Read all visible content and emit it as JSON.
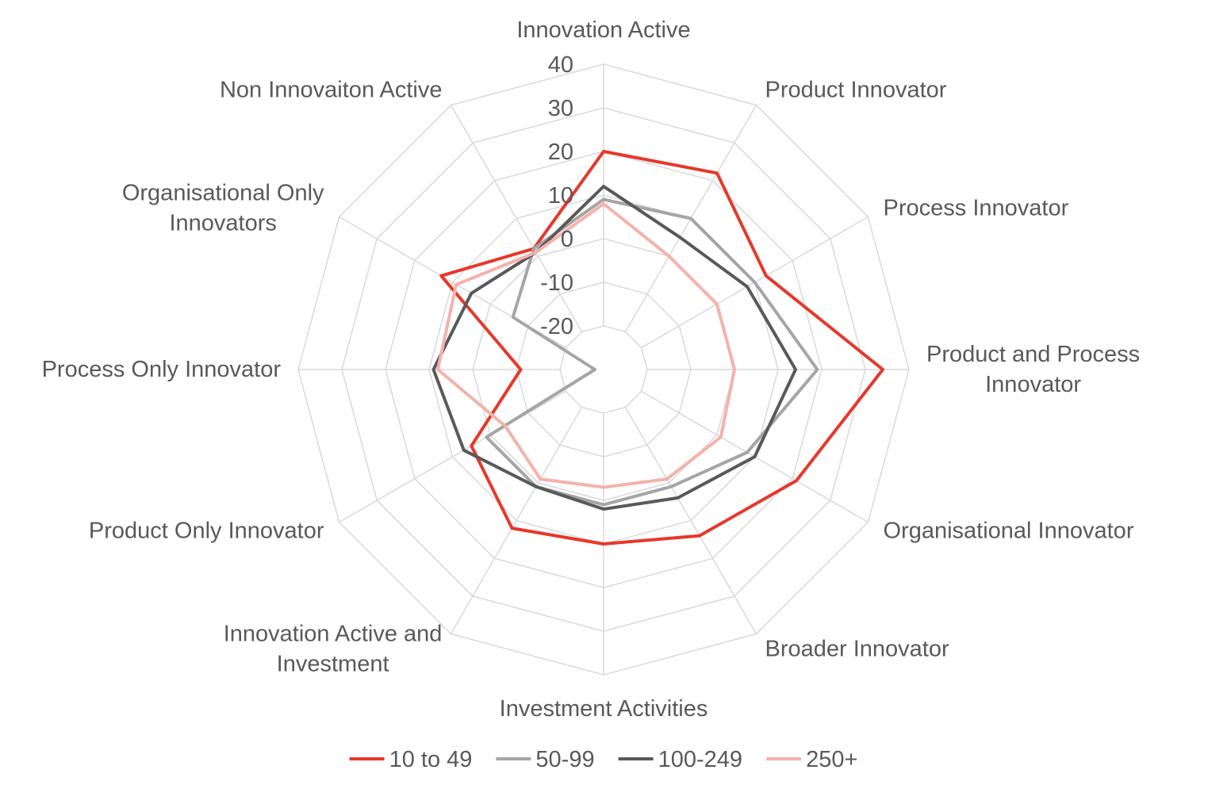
{
  "chart_data": {
    "type": "radar",
    "title": "",
    "categories": [
      "Innovation Active",
      "Product Innovator",
      "Process Innovator",
      "Product and Process Innovator",
      "Organisational Innovator",
      "Broader Innovator",
      "Investment Activities",
      "Innovation Active and Investment",
      "Product Only Innovator",
      "Process Only Innovator",
      "Organisational Only Innovators",
      "Non Innovaiton Active"
    ],
    "category_lines": [
      [
        "Innovation Active"
      ],
      [
        "Product Innovator"
      ],
      [
        "Process Innovator"
      ],
      [
        "Product and Process",
        "Innovator"
      ],
      [
        "Organisational Innovator"
      ],
      [
        "Broader Innovator"
      ],
      [
        "Investment Activities"
      ],
      [
        "Innovation Active and",
        "Investment"
      ],
      [
        "Product Only Innovator"
      ],
      [
        "Process Only Innovator"
      ],
      [
        "Organisational Only",
        "Innovators"
      ],
      [
        "Non Innovaiton Active"
      ]
    ],
    "r_axis": {
      "min": -30,
      "max": 40,
      "ticks": [
        -20,
        -10,
        0,
        10,
        20,
        30,
        40
      ],
      "tick_labels": [
        "-20",
        "-10",
        "0",
        "10",
        "20",
        "30",
        "40"
      ]
    },
    "series": [
      {
        "name": "10 to 49",
        "color": "#e8372a",
        "values": [
          20,
          22,
          13,
          34,
          21,
          14,
          10,
          12,
          5,
          -11,
          13,
          2
        ]
      },
      {
        "name": "50-99",
        "color": "#a5a5a5",
        "values": [
          9,
          10,
          10,
          19,
          8,
          1,
          1,
          1,
          1,
          -28,
          -6,
          2
        ]
      },
      {
        "name": "100-249",
        "color": "#595959",
        "values": [
          12,
          5,
          8,
          14,
          10,
          4,
          2,
          1,
          7,
          9,
          5,
          1
        ]
      },
      {
        "name": "250+",
        "color": "#f4b2ab",
        "values": [
          8,
          0,
          0,
          0,
          1,
          -1,
          -3,
          -1,
          -4,
          8,
          9,
          1
        ]
      }
    ],
    "grid": true,
    "legend": "bottom"
  }
}
